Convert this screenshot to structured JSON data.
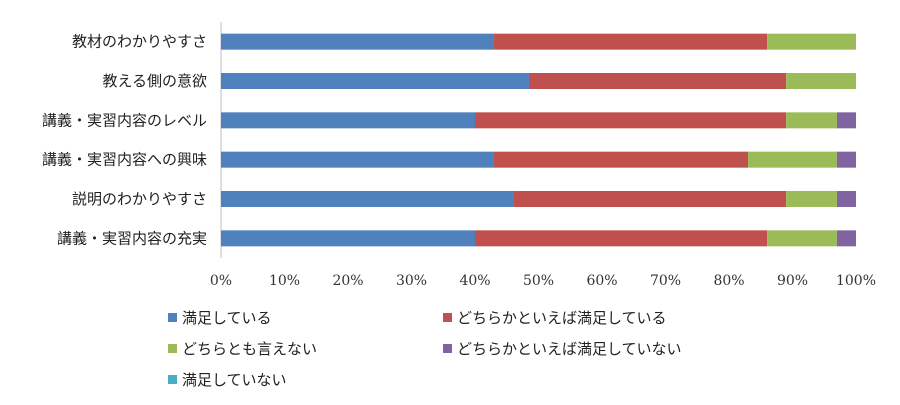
{
  "chart_data": {
    "type": "bar",
    "orientation": "horizontal",
    "stacked": "percent",
    "categories": [
      "教材のわかりやすさ",
      "教える側の意欲",
      "講義・実習内容のレベル",
      "講義・実習内容への興味",
      "説明のわかりやすさ",
      "講義・実習内容の充実"
    ],
    "series": [
      {
        "name": "満足している",
        "color": "#4F81BD",
        "values": [
          43,
          48.5,
          40,
          43,
          46,
          40
        ]
      },
      {
        "name": "どちらかといえば満足している",
        "color": "#C0504D",
        "values": [
          43,
          40.5,
          49,
          40,
          43,
          46
        ]
      },
      {
        "name": "どちらとも言えない",
        "color": "#9BBB59",
        "values": [
          14,
          11,
          8,
          14,
          8,
          11
        ]
      },
      {
        "name": "どちらかといえば満足していない",
        "color": "#8064A2",
        "values": [
          0,
          0,
          3,
          3,
          3,
          3
        ]
      },
      {
        "name": "満足していない",
        "color": "#4BACC6",
        "values": [
          0,
          0,
          0,
          0,
          0,
          0
        ]
      }
    ],
    "xlim": [
      0,
      100
    ],
    "x_ticks": [
      "0%",
      "10%",
      "20%",
      "30%",
      "40%",
      "50%",
      "60%",
      "70%",
      "80%",
      "90%",
      "100%"
    ],
    "grid": false,
    "legend_position": "bottom"
  }
}
